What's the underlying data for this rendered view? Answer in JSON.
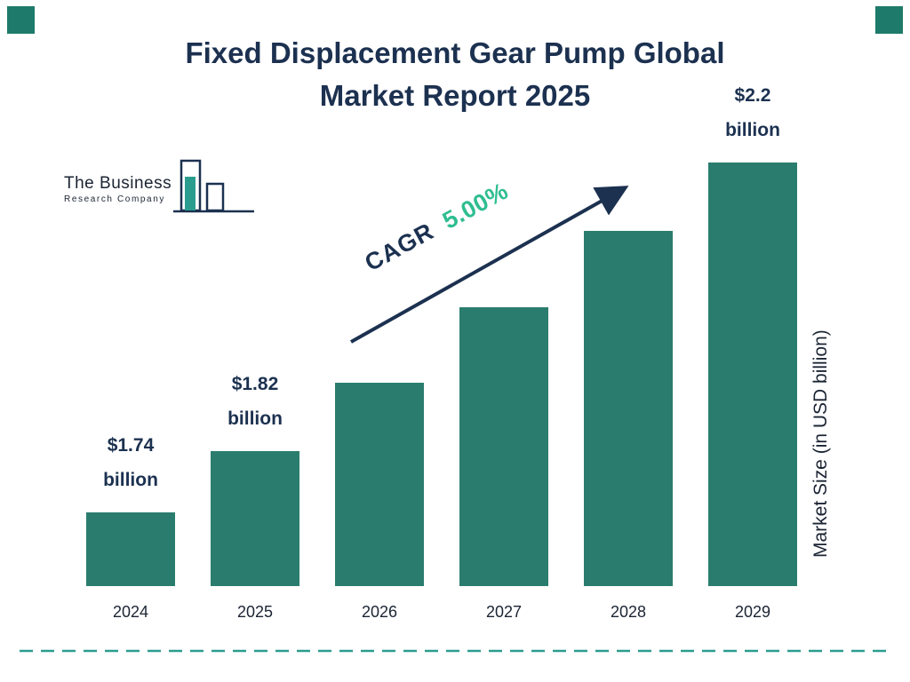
{
  "header": {
    "title_line1": "Fixed Displacement Gear Pump Global",
    "title_line2": "Market Report 2025"
  },
  "logo": {
    "name_line1": "The Business",
    "name_line2": "Research Company"
  },
  "annotation": {
    "cagr_label": "CAGR",
    "cagr_value": "5.00%"
  },
  "axis": {
    "y_label": "Market Size (in USD billion)"
  },
  "colors": {
    "bar_teal": "#2A7D6E",
    "navy": "#1C3150",
    "accent_green": "#2FBD90",
    "dashed_teal": "#2A9D8F",
    "corner_teal": "#1E7A6A"
  },
  "chart_data": {
    "type": "bar",
    "title": "Fixed Displacement Gear Pump Global Market Report 2025",
    "categories": [
      "2024",
      "2025",
      "2026",
      "2027",
      "2028",
      "2029"
    ],
    "values": [
      1.74,
      1.82,
      1.91,
      2.01,
      2.11,
      2.2
    ],
    "unit": "USD billion",
    "ylabel": "Market Size (in USD billion)",
    "cagr": "5.00%",
    "bar_color": "#2A7D6E",
    "grid": false,
    "legend": false,
    "bar_labels": [
      {
        "value": "$1.74",
        "unit": "billion"
      },
      {
        "value": "$1.82",
        "unit": "billion"
      },
      null,
      null,
      null,
      {
        "value": "$2.2",
        "unit": "billion"
      }
    ]
  }
}
